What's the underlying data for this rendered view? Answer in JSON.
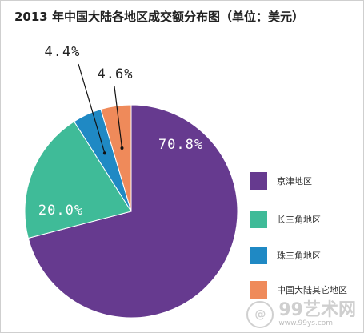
{
  "title": "2013 年中国大陆各地区成交额分布图（单位：美元）",
  "chart_data": {
    "type": "pie",
    "title": "2013 年中国大陆各地区成交额分布图（单位：美元）",
    "slices": [
      {
        "label": "京津地区",
        "value": 70.8,
        "display": "70.8%",
        "color": "#663a8f"
      },
      {
        "label": "长三角地区",
        "value": 20.0,
        "display": "20.0%",
        "color": "#3fbb98"
      },
      {
        "label": "珠三角地区",
        "value": 4.4,
        "display": "4.4%",
        "color": "#1f89c4"
      },
      {
        "label": "中国大陆其它地区",
        "value": 4.6,
        "display": "4.6%",
        "color": "#ef8a5a"
      }
    ],
    "start_angle_deg": 0,
    "direction": "clockwise",
    "legend_position": "right"
  },
  "watermark": {
    "brand": "99艺术网",
    "url": "www.99ys.com",
    "logo_glyph": "@"
  }
}
